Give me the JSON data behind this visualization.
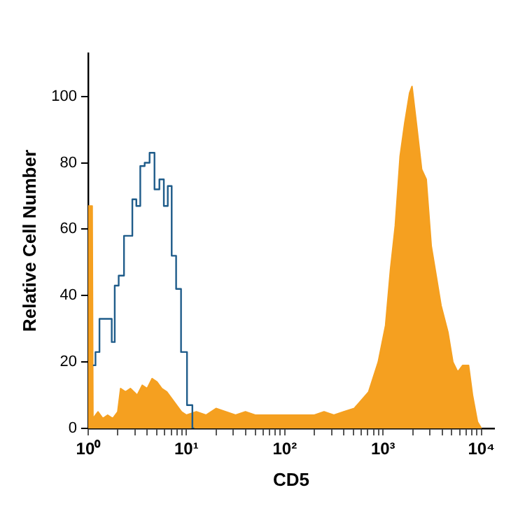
{
  "chart_data": {
    "type": "area",
    "xlabel": "CD5",
    "ylabel": "Relative Cell Number",
    "log": "x",
    "xlim": [
      1,
      13500
    ],
    "ylim": [
      0,
      113
    ],
    "xticks": [
      {
        "value": 1,
        "label": "10⁰"
      },
      {
        "value": 2,
        "label": null
      },
      {
        "value": 3,
        "label": null
      },
      {
        "value": 4,
        "label": null
      },
      {
        "value": 5,
        "label": null
      },
      {
        "value": 6,
        "label": null
      },
      {
        "value": 7,
        "label": null
      },
      {
        "value": 8,
        "label": null
      },
      {
        "value": 9,
        "label": null
      },
      {
        "value": 10,
        "label": "10¹"
      },
      {
        "value": 20,
        "label": null
      },
      {
        "value": 30,
        "label": null
      },
      {
        "value": 40,
        "label": null
      },
      {
        "value": 50,
        "label": null
      },
      {
        "value": 60,
        "label": null
      },
      {
        "value": 70,
        "label": null
      },
      {
        "value": 80,
        "label": null
      },
      {
        "value": 90,
        "label": null
      },
      {
        "value": 100,
        "label": "10²"
      },
      {
        "value": 200,
        "label": null
      },
      {
        "value": 300,
        "label": null
      },
      {
        "value": 400,
        "label": null
      },
      {
        "value": 500,
        "label": null
      },
      {
        "value": 600,
        "label": null
      },
      {
        "value": 700,
        "label": null
      },
      {
        "value": 800,
        "label": null
      },
      {
        "value": 900,
        "label": null
      },
      {
        "value": 1000,
        "label": "10³"
      },
      {
        "value": 2000,
        "label": null
      },
      {
        "value": 3000,
        "label": null
      },
      {
        "value": 4000,
        "label": null
      },
      {
        "value": 5000,
        "label": null
      },
      {
        "value": 6000,
        "label": null
      },
      {
        "value": 7000,
        "label": null
      },
      {
        "value": 8000,
        "label": null
      },
      {
        "value": 9000,
        "label": null
      },
      {
        "value": 10000,
        "label": "10⁴"
      }
    ],
    "yticks": [
      0,
      20,
      40,
      60,
      80,
      100
    ],
    "grid": false,
    "legend": false,
    "series": [
      {
        "color": "#f5a020",
        "x": [
          1,
          1.1,
          1.12,
          1.26,
          1.41,
          1.58,
          1.78,
          2.0,
          2.14,
          2.4,
          2.69,
          3.16,
          3.55,
          3.98,
          4.47,
          5.01,
          5.62,
          6.31,
          7.08,
          7.94,
          8.91,
          10,
          12.6,
          15.8,
          20,
          25.1,
          31.6,
          39.8,
          50.1,
          63.1,
          79.4,
          100,
          126,
          158,
          200,
          251,
          316,
          398,
          508,
          713,
          893,
          1060,
          1190,
          1330,
          1490,
          1660,
          1860,
          1970,
          2200,
          2470,
          2750,
          3090,
          3470,
          3890,
          4570,
          5130,
          5750,
          6460,
          7410,
          8130,
          9120,
          10000
        ],
        "values": [
          67,
          67,
          3,
          5,
          3,
          4,
          3,
          5,
          12,
          11,
          12,
          10,
          13,
          12,
          15,
          14,
          12,
          11,
          9,
          7,
          5,
          4,
          5,
          4,
          6,
          5,
          4,
          5,
          4,
          4,
          4,
          4,
          4,
          4,
          4,
          5,
          4,
          5,
          6,
          11,
          20,
          31,
          48,
          61,
          82,
          92,
          101,
          103,
          91,
          78,
          75,
          55,
          46,
          37,
          29,
          20,
          17,
          19,
          19,
          10,
          2,
          0
        ]
      },
      {
        "type": "step",
        "color": "#1f5c8a",
        "x": [
          1.12,
          1.26,
          1.35,
          1.66,
          1.82,
          1.91,
          2.19,
          2.45,
          2.69,
          2.95,
          3.24,
          3.55,
          3.98,
          4.47,
          5.01,
          5.62,
          6.17,
          6.76,
          7.41,
          8.32,
          9.33,
          11.0,
          12.0
        ],
        "values": [
          19,
          23,
          33,
          33,
          26,
          43,
          46,
          58,
          58,
          69,
          67,
          79,
          80,
          83,
          72,
          75,
          67,
          73,
          52,
          42,
          23,
          7,
          0
        ]
      }
    ]
  }
}
